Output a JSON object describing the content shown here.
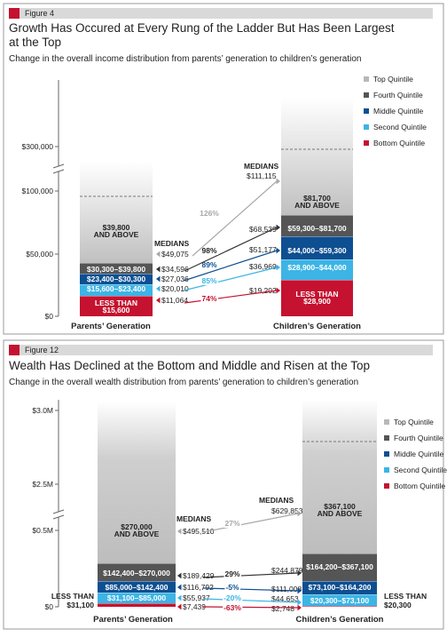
{
  "colors": {
    "top": "#b8b8b8",
    "fourth": "#555555",
    "middle": "#0e4f91",
    "second": "#3cb4e5",
    "bottom": "#c41230",
    "pct_top": "#a8a8a8",
    "pct_dark": "#222222",
    "pct_middle": "#0e4f91",
    "pct_second": "#3cb4e5",
    "pct_bottom": "#c41230"
  },
  "legend": [
    "Top Quintile",
    "Fourth Quintile",
    "Middle Quintile",
    "Second Quintile",
    "Bottom Quintile"
  ],
  "chart_data": [
    {
      "type": "bar",
      "figure_label": "Figure 4",
      "title_lines": [
        "Growth Has Occured at Every Rung of the Ladder But Has Been Largest",
        "at the Top"
      ],
      "subtitle": "Change in the overall income distribution from parents’ generation to children’s generation",
      "y_ticks": [
        "$300,000",
        "$100,000",
        "$50,000",
        "$0"
      ],
      "medians_label": "MEDIANS",
      "categories": [
        "Parents’ Generation",
        "Children’s Generation"
      ],
      "series": [
        {
          "name": "Bottom Quintile",
          "ranges": [
            "LESS THAN $15,600",
            "LESS THAN $28,900"
          ],
          "medians": [
            "$11,064",
            "$19,202"
          ],
          "change": "74%"
        },
        {
          "name": "Second Quintile",
          "ranges": [
            "$15,600–$23,400",
            "$28,900–$44,000"
          ],
          "medians": [
            "$20,010",
            "$36,969"
          ],
          "change": "85%"
        },
        {
          "name": "Middle Quintile",
          "ranges": [
            "$23,400–$30,300",
            "$44,000–$59,300"
          ],
          "medians": [
            "$27,036",
            "$51,177"
          ],
          "change": "89%"
        },
        {
          "name": "Fourth Quintile",
          "ranges": [
            "$30,300–$39,800",
            "$59,300–$81,700"
          ],
          "medians": [
            "$34,596",
            "$68,539"
          ],
          "change": "98%"
        },
        {
          "name": "Top Quintile",
          "ranges": [
            "$39,800 AND ABOVE",
            "$81,700 AND ABOVE"
          ],
          "medians": [
            "$49,075",
            "$111,115"
          ],
          "change": "126%"
        }
      ]
    },
    {
      "type": "bar",
      "figure_label": "Figure 12",
      "title_lines": [
        "Wealth Has Declined at the Bottom and Middle and Risen at the Top"
      ],
      "subtitle": "Change in the overall wealth distribution from parents’ generation to children’s generation",
      "y_ticks": [
        "$3.0M",
        "$2.5M",
        "$0.5M",
        "$0"
      ],
      "medians_label": "MEDIANS",
      "categories": [
        "Parents’ Generation",
        "Children’s Generation"
      ],
      "series": [
        {
          "name": "Bottom Quintile",
          "ranges": [
            "LESS THAN $31,100",
            "LESS THAN $20,300"
          ],
          "medians": [
            "$7,439",
            "$2,748"
          ],
          "change": "-63%"
        },
        {
          "name": "Second Quintile",
          "ranges": [
            "$31,100–$85,000",
            "$20,300–$73,100"
          ],
          "medians": [
            "$55,937",
            "$44,653"
          ],
          "change": "-20%"
        },
        {
          "name": "Middle Quintile",
          "ranges": [
            "$85,000–$142,400",
            "$73,100–$164,200"
          ],
          "medians": [
            "$116,792",
            "$111,008"
          ],
          "change": "-5%"
        },
        {
          "name": "Fourth Quintile",
          "ranges": [
            "$142,400–$270,000",
            "$164,200–$367,100"
          ],
          "medians": [
            "$189,429",
            "$244,879"
          ],
          "change": "29%"
        },
        {
          "name": "Top Quintile",
          "ranges": [
            "$270,000 AND ABOVE",
            "$367,100 AND ABOVE"
          ],
          "medians": [
            "$495,510",
            "$629,853"
          ],
          "change": "27%"
        }
      ]
    }
  ]
}
